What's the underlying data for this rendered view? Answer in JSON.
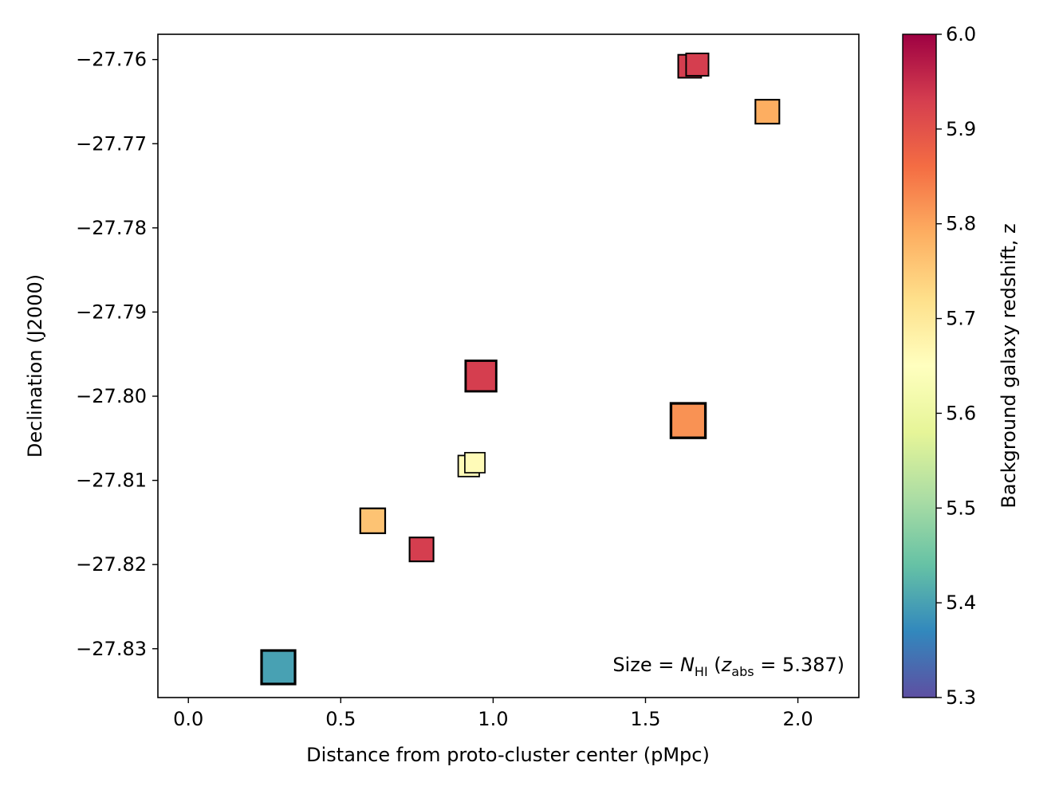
{
  "chart_data": {
    "type": "scatter",
    "title": "",
    "xlabel": "Distance from proto-cluster center (pMpc)",
    "ylabel": "Declination (J2000)",
    "xlim": [
      -0.1,
      2.2
    ],
    "ylim": [
      -27.8358,
      -27.757
    ],
    "xticks": [
      0.0,
      0.5,
      1.0,
      1.5,
      2.0
    ],
    "xtick_labels": [
      "0.0",
      "0.5",
      "1.0",
      "1.5",
      "2.0"
    ],
    "yticks": [
      -27.76,
      -27.77,
      -27.78,
      -27.79,
      -27.8,
      -27.81,
      -27.82,
      -27.83
    ],
    "ytick_labels": [
      "−27.76",
      "−27.77",
      "−27.78",
      "−27.79",
      "−27.80",
      "−27.81",
      "−27.82",
      "−27.83"
    ],
    "colorbar": {
      "label": "Background galaxy redshift, z",
      "min": 5.3,
      "max": 6.0,
      "ticks": [
        5.3,
        5.4,
        5.5,
        5.6,
        5.7,
        5.8,
        5.9,
        6.0
      ],
      "tick_labels": [
        "5.3",
        "5.4",
        "5.5",
        "5.6",
        "5.7",
        "5.8",
        "5.9",
        "6.0"
      ],
      "colormap": "Spectral"
    },
    "annotation": {
      "prefix": "Size = ",
      "var": "N",
      "var_sub": "HI",
      "paren_open": " (",
      "z": "z",
      "z_sub": "abs",
      "equals": " = 5.387)"
    },
    "marker": "square",
    "points": [
      {
        "x": 0.295,
        "y": -27.8322,
        "z": 5.4,
        "size_rel": 1.0
      },
      {
        "x": 0.605,
        "y": -27.8148,
        "z": 5.76,
        "size_rel": 0.55
      },
      {
        "x": 0.765,
        "y": -27.8182,
        "z": 5.93,
        "size_rel": 0.5
      },
      {
        "x": 0.92,
        "y": -27.8083,
        "z": 5.66,
        "size_rel": 0.35
      },
      {
        "x": 0.94,
        "y": -27.8079,
        "z": 5.66,
        "size_rel": 0.3
      },
      {
        "x": 0.96,
        "y": -27.7976,
        "z": 5.93,
        "size_rel": 0.85
      },
      {
        "x": 1.64,
        "y": -27.8029,
        "z": 5.82,
        "size_rel": 1.05
      },
      {
        "x": 1.645,
        "y": -27.7608,
        "z": 5.93,
        "size_rel": 0.45
      },
      {
        "x": 1.67,
        "y": -27.7606,
        "z": 5.93,
        "size_rel": 0.42
      },
      {
        "x": 1.9,
        "y": -27.7662,
        "z": 5.79,
        "size_rel": 0.5
      }
    ]
  }
}
